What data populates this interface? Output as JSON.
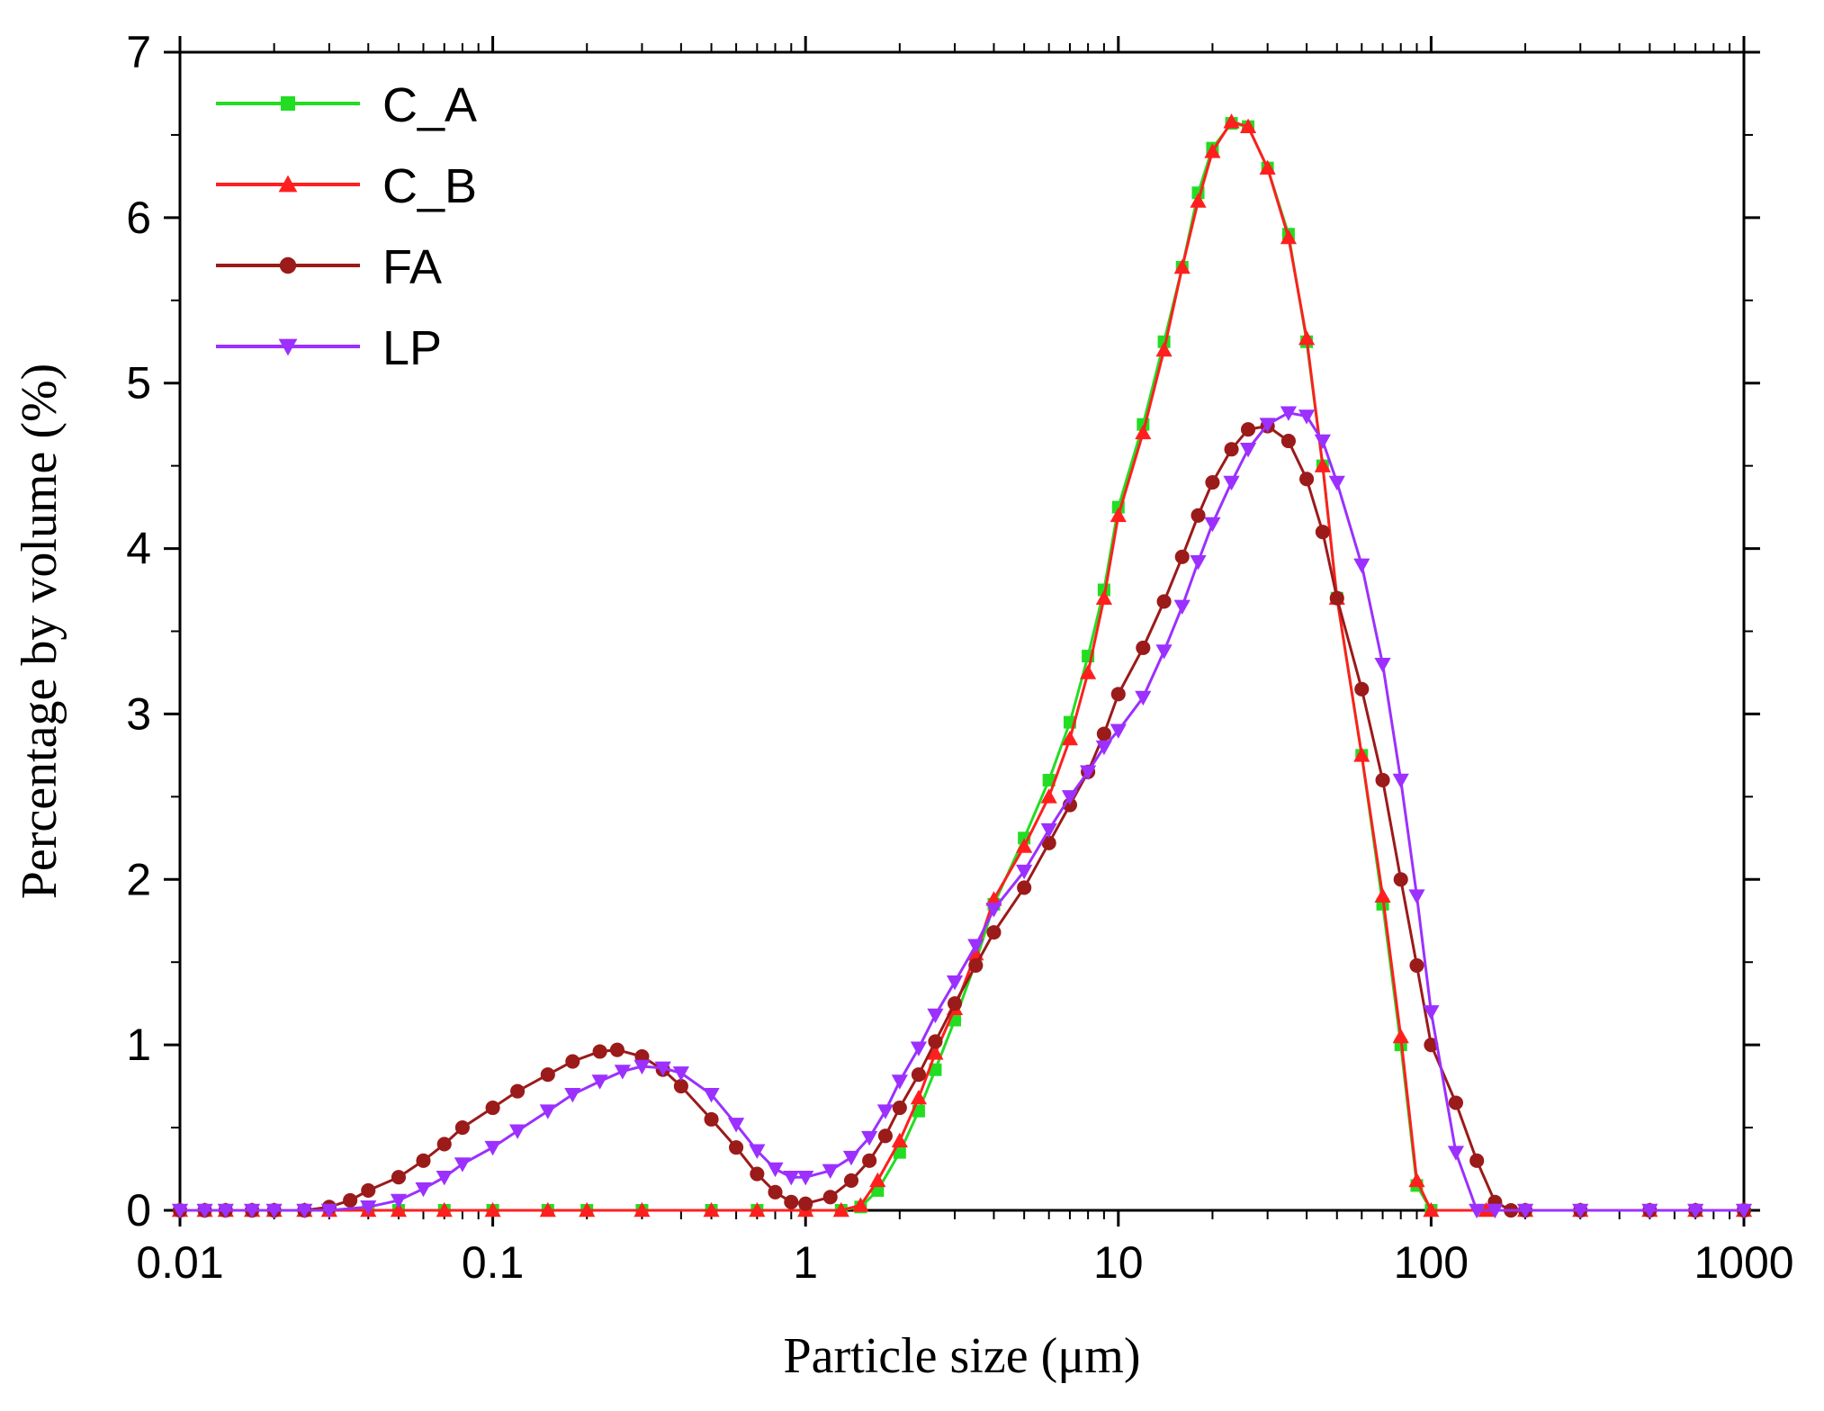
{
  "chart_data": {
    "type": "line",
    "title": "",
    "xlabel": "Particle size (μm)",
    "ylabel": "Percentage by volume (%)",
    "xscale": "log",
    "xlim": [
      0.01,
      1000
    ],
    "ylim": [
      0,
      7
    ],
    "xticks": [
      "0.01",
      "0.1",
      "1",
      "10",
      "100",
      "1000"
    ],
    "yticks": [
      "0",
      "1",
      "2",
      "3",
      "4",
      "5",
      "6",
      "7"
    ],
    "legend_position": "top-left",
    "series": [
      {
        "name": "C_A",
        "color": "#22dd22",
        "marker": "square",
        "points": [
          [
            0.01,
            0
          ],
          [
            0.012,
            0
          ],
          [
            0.014,
            0
          ],
          [
            0.017,
            0
          ],
          [
            0.02,
            0
          ],
          [
            0.025,
            0
          ],
          [
            0.03,
            0
          ],
          [
            0.04,
            0
          ],
          [
            0.05,
            0
          ],
          [
            0.07,
            0
          ],
          [
            0.1,
            0
          ],
          [
            0.15,
            0
          ],
          [
            0.2,
            0
          ],
          [
            0.3,
            0
          ],
          [
            0.5,
            0
          ],
          [
            0.7,
            0
          ],
          [
            1.0,
            0
          ],
          [
            1.3,
            0
          ],
          [
            1.5,
            0.02
          ],
          [
            1.7,
            0.12
          ],
          [
            2.0,
            0.35
          ],
          [
            2.3,
            0.6
          ],
          [
            2.6,
            0.85
          ],
          [
            3.0,
            1.15
          ],
          [
            3.5,
            1.5
          ],
          [
            4.0,
            1.85
          ],
          [
            5.0,
            2.25
          ],
          [
            6.0,
            2.6
          ],
          [
            7.0,
            2.95
          ],
          [
            8.0,
            3.35
          ],
          [
            9.0,
            3.75
          ],
          [
            10.0,
            4.25
          ],
          [
            12.0,
            4.75
          ],
          [
            14.0,
            5.25
          ],
          [
            16.0,
            5.7
          ],
          [
            18.0,
            6.15
          ],
          [
            20.0,
            6.42
          ],
          [
            23.0,
            6.57
          ],
          [
            26.0,
            6.55
          ],
          [
            30.0,
            6.3
          ],
          [
            35.0,
            5.9
          ],
          [
            40.0,
            5.25
          ],
          [
            45.0,
            4.5
          ],
          [
            50.0,
            3.7
          ],
          [
            60.0,
            2.75
          ],
          [
            70.0,
            1.85
          ],
          [
            80.0,
            1.0
          ],
          [
            90.0,
            0.15
          ],
          [
            100.0,
            0
          ],
          [
            150.0,
            0
          ],
          [
            200.0,
            0
          ],
          [
            300.0,
            0
          ],
          [
            500.0,
            0
          ],
          [
            700.0,
            0
          ],
          [
            1000.0,
            0
          ]
        ]
      },
      {
        "name": "C_B",
        "color": "#ff1f1f",
        "marker": "triangle-up",
        "points": [
          [
            0.01,
            0
          ],
          [
            0.012,
            0
          ],
          [
            0.014,
            0
          ],
          [
            0.017,
            0
          ],
          [
            0.02,
            0
          ],
          [
            0.025,
            0
          ],
          [
            0.03,
            0
          ],
          [
            0.04,
            0
          ],
          [
            0.05,
            0
          ],
          [
            0.07,
            0
          ],
          [
            0.1,
            0
          ],
          [
            0.15,
            0
          ],
          [
            0.2,
            0
          ],
          [
            0.3,
            0
          ],
          [
            0.5,
            0
          ],
          [
            0.7,
            0
          ],
          [
            1.0,
            0
          ],
          [
            1.3,
            0
          ],
          [
            1.5,
            0.03
          ],
          [
            1.7,
            0.18
          ],
          [
            2.0,
            0.42
          ],
          [
            2.3,
            0.68
          ],
          [
            2.6,
            0.95
          ],
          [
            3.0,
            1.22
          ],
          [
            3.5,
            1.55
          ],
          [
            4.0,
            1.88
          ],
          [
            5.0,
            2.2
          ],
          [
            6.0,
            2.5
          ],
          [
            7.0,
            2.85
          ],
          [
            8.0,
            3.25
          ],
          [
            9.0,
            3.7
          ],
          [
            10.0,
            4.2
          ],
          [
            12.0,
            4.7
          ],
          [
            14.0,
            5.2
          ],
          [
            16.0,
            5.7
          ],
          [
            18.0,
            6.1
          ],
          [
            20.0,
            6.4
          ],
          [
            23.0,
            6.58
          ],
          [
            26.0,
            6.55
          ],
          [
            30.0,
            6.3
          ],
          [
            35.0,
            5.88
          ],
          [
            40.0,
            5.27
          ],
          [
            45.0,
            4.5
          ],
          [
            50.0,
            3.7
          ],
          [
            60.0,
            2.75
          ],
          [
            70.0,
            1.9
          ],
          [
            80.0,
            1.05
          ],
          [
            90.0,
            0.18
          ],
          [
            100.0,
            0
          ],
          [
            150.0,
            0
          ],
          [
            200.0,
            0
          ],
          [
            300.0,
            0
          ],
          [
            500.0,
            0
          ],
          [
            700.0,
            0
          ],
          [
            1000.0,
            0
          ]
        ]
      },
      {
        "name": "FA",
        "color": "#9b1a1a",
        "marker": "circle",
        "points": [
          [
            0.01,
            0
          ],
          [
            0.012,
            0
          ],
          [
            0.014,
            0
          ],
          [
            0.017,
            0
          ],
          [
            0.02,
            0
          ],
          [
            0.025,
            0
          ],
          [
            0.03,
            0.02
          ],
          [
            0.035,
            0.06
          ],
          [
            0.04,
            0.12
          ],
          [
            0.05,
            0.2
          ],
          [
            0.06,
            0.3
          ],
          [
            0.07,
            0.4
          ],
          [
            0.08,
            0.5
          ],
          [
            0.1,
            0.62
          ],
          [
            0.12,
            0.72
          ],
          [
            0.15,
            0.82
          ],
          [
            0.18,
            0.9
          ],
          [
            0.22,
            0.96
          ],
          [
            0.25,
            0.97
          ],
          [
            0.3,
            0.93
          ],
          [
            0.35,
            0.85
          ],
          [
            0.4,
            0.75
          ],
          [
            0.5,
            0.55
          ],
          [
            0.6,
            0.38
          ],
          [
            0.7,
            0.22
          ],
          [
            0.8,
            0.11
          ],
          [
            0.9,
            0.05
          ],
          [
            1.0,
            0.04
          ],
          [
            1.2,
            0.08
          ],
          [
            1.4,
            0.18
          ],
          [
            1.6,
            0.3
          ],
          [
            1.8,
            0.45
          ],
          [
            2.0,
            0.62
          ],
          [
            2.3,
            0.82
          ],
          [
            2.6,
            1.02
          ],
          [
            3.0,
            1.25
          ],
          [
            3.5,
            1.48
          ],
          [
            4.0,
            1.68
          ],
          [
            5.0,
            1.95
          ],
          [
            6.0,
            2.22
          ],
          [
            7.0,
            2.45
          ],
          [
            8.0,
            2.65
          ],
          [
            9.0,
            2.88
          ],
          [
            10.0,
            3.12
          ],
          [
            12.0,
            3.4
          ],
          [
            14.0,
            3.68
          ],
          [
            16.0,
            3.95
          ],
          [
            18.0,
            4.2
          ],
          [
            20.0,
            4.4
          ],
          [
            23.0,
            4.6
          ],
          [
            26.0,
            4.72
          ],
          [
            30.0,
            4.74
          ],
          [
            35.0,
            4.65
          ],
          [
            40.0,
            4.42
          ],
          [
            45.0,
            4.1
          ],
          [
            50.0,
            3.7
          ],
          [
            60.0,
            3.15
          ],
          [
            70.0,
            2.6
          ],
          [
            80.0,
            2.0
          ],
          [
            90.0,
            1.48
          ],
          [
            100.0,
            1.0
          ],
          [
            120.0,
            0.65
          ],
          [
            140.0,
            0.3
          ],
          [
            160.0,
            0.05
          ],
          [
            180.0,
            0
          ],
          [
            200.0,
            0
          ],
          [
            300.0,
            0
          ],
          [
            500.0,
            0
          ],
          [
            700.0,
            0
          ],
          [
            1000.0,
            0
          ]
        ]
      },
      {
        "name": "LP",
        "color": "#9b30ff",
        "marker": "triangle-down",
        "points": [
          [
            0.01,
            0
          ],
          [
            0.012,
            0
          ],
          [
            0.014,
            0
          ],
          [
            0.017,
            0
          ],
          [
            0.02,
            0
          ],
          [
            0.025,
            0
          ],
          [
            0.03,
            0
          ],
          [
            0.04,
            0.02
          ],
          [
            0.05,
            0.06
          ],
          [
            0.06,
            0.13
          ],
          [
            0.07,
            0.2
          ],
          [
            0.08,
            0.28
          ],
          [
            0.1,
            0.38
          ],
          [
            0.12,
            0.48
          ],
          [
            0.15,
            0.6
          ],
          [
            0.18,
            0.7
          ],
          [
            0.22,
            0.78
          ],
          [
            0.26,
            0.84
          ],
          [
            0.3,
            0.87
          ],
          [
            0.35,
            0.86
          ],
          [
            0.4,
            0.83
          ],
          [
            0.5,
            0.7
          ],
          [
            0.6,
            0.52
          ],
          [
            0.7,
            0.36
          ],
          [
            0.8,
            0.25
          ],
          [
            0.9,
            0.2
          ],
          [
            1.0,
            0.2
          ],
          [
            1.2,
            0.24
          ],
          [
            1.4,
            0.32
          ],
          [
            1.6,
            0.44
          ],
          [
            1.8,
            0.6
          ],
          [
            2.0,
            0.78
          ],
          [
            2.3,
            0.98
          ],
          [
            2.6,
            1.18
          ],
          [
            3.0,
            1.38
          ],
          [
            3.5,
            1.6
          ],
          [
            4.0,
            1.82
          ],
          [
            5.0,
            2.05
          ],
          [
            6.0,
            2.3
          ],
          [
            7.0,
            2.5
          ],
          [
            8.0,
            2.65
          ],
          [
            9.0,
            2.8
          ],
          [
            10.0,
            2.9
          ],
          [
            12.0,
            3.1
          ],
          [
            14.0,
            3.38
          ],
          [
            16.0,
            3.65
          ],
          [
            18.0,
            3.92
          ],
          [
            20.0,
            4.15
          ],
          [
            23.0,
            4.4
          ],
          [
            26.0,
            4.6
          ],
          [
            30.0,
            4.75
          ],
          [
            35.0,
            4.82
          ],
          [
            40.0,
            4.8
          ],
          [
            45.0,
            4.65
          ],
          [
            50.0,
            4.4
          ],
          [
            60.0,
            3.9
          ],
          [
            70.0,
            3.3
          ],
          [
            80.0,
            2.6
          ],
          [
            90.0,
            1.9
          ],
          [
            100.0,
            1.2
          ],
          [
            120.0,
            0.35
          ],
          [
            140.0,
            0
          ],
          [
            160.0,
            0
          ],
          [
            200.0,
            0
          ],
          [
            300.0,
            0
          ],
          [
            500.0,
            0
          ],
          [
            700.0,
            0
          ],
          [
            1000.0,
            0
          ]
        ]
      }
    ]
  }
}
